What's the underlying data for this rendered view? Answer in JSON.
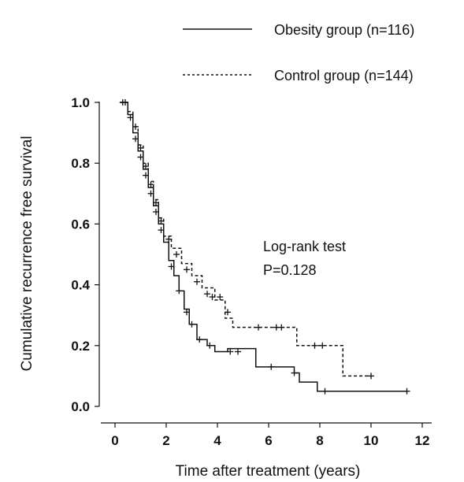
{
  "chart_data": {
    "type": "line",
    "title": "",
    "xlabel": "Time after treatment (years)",
    "ylabel": "Cumulative recurrence free survival",
    "xlim": [
      -0.5,
      12.5
    ],
    "ylim": [
      -0.03,
      1.03
    ],
    "x_ticks": [
      0,
      2,
      4,
      6,
      8,
      10,
      12
    ],
    "y_ticks": [
      0.0,
      0.2,
      0.4,
      0.6,
      0.8,
      1.0
    ],
    "x_tick_labels": [
      "0",
      "2",
      "4",
      "6",
      "8",
      "10",
      "12"
    ],
    "y_tick_labels": [
      "0.0",
      "0.2",
      "0.4",
      "0.6",
      "0.8",
      "1.0"
    ],
    "grid": false,
    "legend_position": "top-right",
    "annotations": [
      "Log-rank test",
      "P=0.128"
    ],
    "series": [
      {
        "name": "Obesity group (n=116)",
        "style": "solid",
        "color": "#111111",
        "step_x": [
          0.2,
          0.5,
          0.7,
          0.9,
          1.1,
          1.3,
          1.5,
          1.7,
          1.9,
          2.1,
          2.3,
          2.5,
          2.7,
          2.9,
          3.2,
          3.6,
          3.9,
          4.4,
          5.5,
          7.0,
          7.2,
          7.9,
          11.4
        ],
        "step_y": [
          1.0,
          0.96,
          0.9,
          0.84,
          0.78,
          0.72,
          0.66,
          0.6,
          0.54,
          0.48,
          0.43,
          0.38,
          0.32,
          0.27,
          0.22,
          0.2,
          0.18,
          0.19,
          0.13,
          0.11,
          0.08,
          0.05,
          0.05
        ],
        "censored_x": [
          0.3,
          0.6,
          0.8,
          1.0,
          1.2,
          1.4,
          1.6,
          1.8,
          2.2,
          2.5,
          2.8,
          3.0,
          3.3,
          3.7,
          4.5,
          4.8,
          6.1,
          7.0,
          8.2,
          11.4
        ],
        "censored_y": [
          1.0,
          0.95,
          0.88,
          0.82,
          0.76,
          0.7,
          0.64,
          0.58,
          0.46,
          0.38,
          0.31,
          0.27,
          0.22,
          0.2,
          0.18,
          0.18,
          0.13,
          0.11,
          0.05,
          0.05
        ]
      },
      {
        "name": "Control group (n=144)",
        "style": "dashed",
        "color": "#111111",
        "step_x": [
          0.2,
          0.5,
          0.7,
          0.9,
          1.1,
          1.3,
          1.5,
          1.7,
          1.9,
          2.2,
          2.6,
          3.0,
          3.4,
          3.9,
          4.3,
          4.6,
          5.5,
          7.1,
          8.9,
          10.0
        ],
        "step_y": [
          1.0,
          0.97,
          0.92,
          0.86,
          0.8,
          0.74,
          0.68,
          0.62,
          0.56,
          0.52,
          0.47,
          0.43,
          0.39,
          0.35,
          0.29,
          0.26,
          0.26,
          0.2,
          0.1,
          0.1
        ],
        "censored_x": [
          0.4,
          0.8,
          1.0,
          1.2,
          1.4,
          1.6,
          1.8,
          2.1,
          2.4,
          2.8,
          3.2,
          3.6,
          3.8,
          4.1,
          4.4,
          5.6,
          6.3,
          6.5,
          7.8,
          8.1,
          10.0
        ],
        "censored_y": [
          1.0,
          0.92,
          0.85,
          0.79,
          0.73,
          0.67,
          0.61,
          0.55,
          0.5,
          0.45,
          0.41,
          0.37,
          0.36,
          0.36,
          0.31,
          0.26,
          0.26,
          0.26,
          0.2,
          0.2,
          0.1
        ]
      }
    ]
  }
}
